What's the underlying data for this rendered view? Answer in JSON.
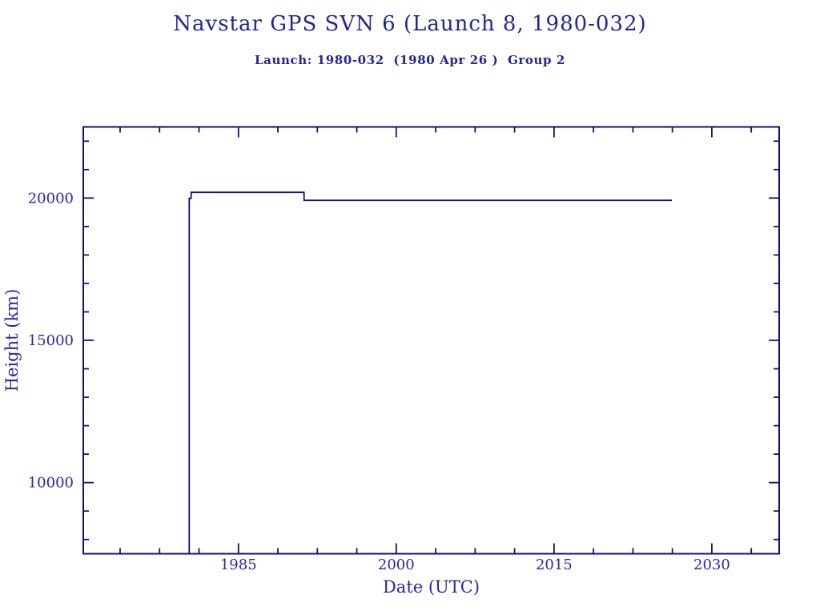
{
  "header": {
    "title": "Navstar GPS SVN 6 (Launch 8, 1980-032)",
    "subtitle": "Launch: 1980-032  (1980 Apr 26 )  Group 2"
  },
  "colors": {
    "background": "#ffffff",
    "text": "#23239b",
    "tick_text": "#2727ad",
    "axis": "#10107e",
    "line": "#10107e"
  },
  "chart_data": {
    "type": "line",
    "title": "Navstar GPS SVN 6 (Launch 8, 1980-032)",
    "subtitle": "Launch: 1980-032  (1980 Apr 26 )  Group 2",
    "xlabel": "Date (UTC)",
    "ylabel": "Height (km)",
    "xlim": [
      1970.25,
      2036.4
    ],
    "ylim": [
      7500,
      22500
    ],
    "x_major_ticks": [
      1985,
      2000,
      2015,
      2030
    ],
    "x_major_tick_labels": [
      "1985",
      "2000",
      "2015",
      "2030"
    ],
    "x_minor_step": 3.75,
    "y_major_ticks": [
      10000,
      15000,
      20000
    ],
    "y_major_tick_labels": [
      "10000",
      "15000",
      "20000"
    ],
    "y_minor_step": 1000,
    "grid": false,
    "legend": null,
    "ticks_mirrored_all_sides": true,
    "series": [
      {
        "name": "height_km",
        "description": "Satellite height above Earth vs date; vertical rise at launch 1980.32, ~20200 km plateau until ~1991.2, then ~19920 km plateau until ~2026.2",
        "points": [
          [
            1980.32,
            7500
          ],
          [
            1980.32,
            19990
          ],
          [
            1980.5,
            19990
          ],
          [
            1980.5,
            20200
          ],
          [
            1991.24,
            20200
          ],
          [
            1991.24,
            19920
          ],
          [
            2026.2,
            19920
          ]
        ]
      }
    ]
  }
}
